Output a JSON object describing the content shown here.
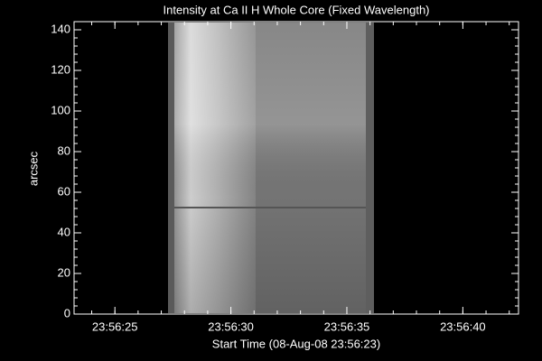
{
  "chart_data": {
    "type": "image",
    "title": "Intensity at Ca II H Whole Core (Fixed Wavelength)",
    "x_label": "Start Time (08-Aug-08 23:56:23)",
    "y_label": "arcsec",
    "xlim": [
      23.24,
      42.4
    ],
    "xticks": [
      {
        "value": 25,
        "label": "23:56:25"
      },
      {
        "value": 30,
        "label": "23:56:30"
      },
      {
        "value": 35,
        "label": "23:56:35"
      },
      {
        "value": 40,
        "label": "23:56:40"
      }
    ],
    "ylim": [
      0,
      144
    ],
    "yticks": [
      0,
      20,
      40,
      60,
      80,
      100,
      120,
      140
    ],
    "minor_ticks": true
  }
}
